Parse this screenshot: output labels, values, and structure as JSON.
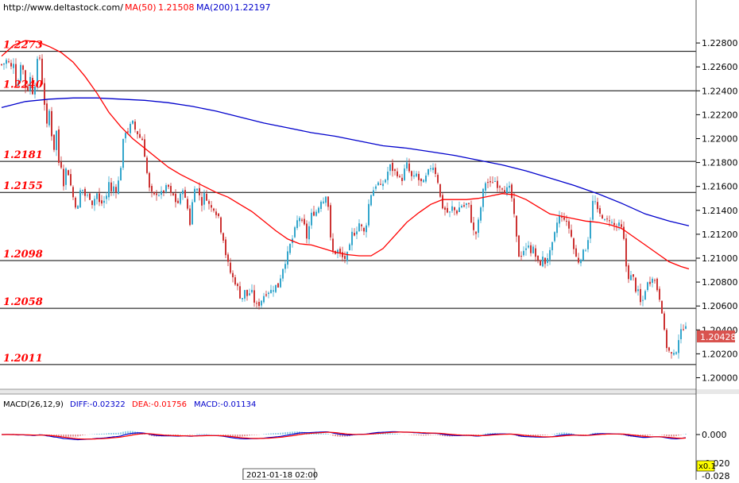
{
  "site_url": "http://www.deltastock.com/",
  "ma50": {
    "label": "MA(50)",
    "value": "1.21508",
    "color": "#ff0000"
  },
  "ma200": {
    "label": "MA(200)",
    "value": "1.22197",
    "color": "#0000cc"
  },
  "macd": {
    "label": "MACD(26,12,9)",
    "diff": "DIFF:-0.02322",
    "dea": "DEA:-0.01756",
    "macd_val": "MACD:-0.01134",
    "zero_label": "0.000",
    "low_label": "-0.020",
    "bottom_label": "-0.028",
    "factor_badge": "x0.1"
  },
  "current_price": "1.20428",
  "crosshair_date": "2021-01-18 02:00",
  "colors": {
    "up": "#33a6cc",
    "down": "#cc3333",
    "ma50": "#ff0000",
    "ma200": "#0000cc",
    "level": "#000000",
    "price_tag": "#d9534f"
  },
  "chart_data": {
    "type": "candlestick",
    "y_axis_ticks": [
      "1.22800",
      "1.22600",
      "1.22400",
      "1.22200",
      "1.22000",
      "1.21800",
      "1.21600",
      "1.21400",
      "1.21200",
      "1.21000",
      "1.20800",
      "1.20600",
      "1.20400",
      "1.20200",
      "1.20000"
    ],
    "ylim": [
      1.1993,
      1.23
    ],
    "levels": [
      {
        "value": 1.2273,
        "label": "1.2273"
      },
      {
        "value": 1.224,
        "label": "1.2240"
      },
      {
        "value": 1.2181,
        "label": "1.2181"
      },
      {
        "value": 1.2155,
        "label": "1.2155"
      },
      {
        "value": 1.2098,
        "label": "1.2098"
      },
      {
        "value": 1.2058,
        "label": "1.2058"
      },
      {
        "value": 1.2011,
        "label": "1.2011"
      }
    ],
    "close_path": [
      [
        0,
        1.2262
      ],
      [
        5,
        1.2264
      ],
      [
        8,
        1.2268
      ],
      [
        11,
        1.2254
      ],
      [
        14,
        1.227
      ],
      [
        16,
        1.2259
      ],
      [
        19,
        1.224
      ],
      [
        22,
        1.2251
      ],
      [
        25,
        1.227
      ],
      [
        28,
        1.2251
      ],
      [
        32,
        1.2236
      ],
      [
        35,
        1.2254
      ],
      [
        37,
        1.2248
      ],
      [
        40,
        1.2235
      ],
      [
        43,
        1.2252
      ],
      [
        45,
        1.2264
      ],
      [
        48,
        1.2268
      ],
      [
        50,
        1.2255
      ],
      [
        52,
        1.2239
      ],
      [
        55,
        1.2225
      ],
      [
        57,
        1.221
      ],
      [
        60,
        1.2223
      ],
      [
        62,
        1.2208
      ],
      [
        65,
        1.2195
      ],
      [
        67,
        1.2189
      ],
      [
        69,
        1.2206
      ],
      [
        72,
        1.218
      ],
      [
        75,
        1.2178
      ],
      [
        78,
        1.2163
      ],
      [
        80,
        1.2178
      ],
      [
        82,
        1.217
      ],
      [
        85,
        1.2172
      ],
      [
        88,
        1.2155
      ],
      [
        90,
        1.2151
      ],
      [
        93,
        1.2145
      ],
      [
        95,
        1.2138
      ],
      [
        98,
        1.215
      ],
      [
        100,
        1.2162
      ],
      [
        103,
        1.2155
      ],
      [
        106,
        1.2151
      ],
      [
        109,
        1.2152
      ],
      [
        112,
        1.2151
      ],
      [
        115,
        1.2144
      ],
      [
        117,
        1.215
      ],
      [
        120,
        1.2154
      ],
      [
        123,
        1.2146
      ],
      [
        126,
        1.2146
      ],
      [
        129,
        1.2148
      ],
      [
        132,
        1.2152
      ],
      [
        135,
        1.2164
      ],
      [
        138,
        1.2155
      ],
      [
        141,
        1.216
      ],
      [
        143,
        1.2156
      ],
      [
        146,
        1.2161
      ],
      [
        149,
        1.217
      ],
      [
        152,
        1.2192
      ],
      [
        155,
        1.2207
      ],
      [
        158,
        1.2206
      ],
      [
        161,
        1.2208
      ],
      [
        164,
        1.2215
      ],
      [
        167,
        1.2208
      ],
      [
        170,
        1.2207
      ],
      [
        173,
        1.22
      ],
      [
        176,
        1.2203
      ],
      [
        179,
        1.2192
      ],
      [
        182,
        1.2177
      ],
      [
        185,
        1.2159
      ],
      [
        188,
        1.2155
      ],
      [
        191,
        1.215
      ],
      [
        194,
        1.2155
      ],
      [
        197,
        1.2155
      ],
      [
        200,
        1.2152
      ],
      [
        203,
        1.2157
      ],
      [
        206,
        1.2156
      ],
      [
        209,
        1.2163
      ],
      [
        212,
        1.2152
      ],
      [
        215,
        1.2154
      ],
      [
        218,
        1.2148
      ],
      [
        221,
        1.2147
      ],
      [
        224,
        1.2145
      ],
      [
        227,
        1.2165
      ],
      [
        230,
        1.2148
      ],
      [
        233,
        1.215
      ],
      [
        236,
        1.2125
      ],
      [
        239,
        1.2138
      ],
      [
        242,
        1.2163
      ],
      [
        245,
        1.2157
      ],
      [
        248,
        1.2158
      ],
      [
        251,
        1.2143
      ],
      [
        254,
        1.2152
      ],
      [
        257,
        1.2153
      ],
      [
        260,
        1.2147
      ],
      [
        263,
        1.214
      ],
      [
        266,
        1.2145
      ],
      [
        269,
        1.2138
      ],
      [
        272,
        1.214
      ],
      [
        275,
        1.2125
      ],
      [
        278,
        1.2122
      ],
      [
        281,
        1.2107
      ],
      [
        284,
        1.2097
      ],
      [
        287,
        1.209
      ],
      [
        290,
        1.2084
      ],
      [
        293,
        1.2082
      ],
      [
        296,
        1.2077
      ],
      [
        299,
        1.2071
      ],
      [
        302,
        1.2064
      ],
      [
        305,
        1.2074
      ],
      [
        308,
        1.2068
      ],
      [
        311,
        1.207
      ],
      [
        314,
        1.2073
      ],
      [
        317,
        1.2066
      ],
      [
        320,
        1.206
      ],
      [
        323,
        1.2061
      ],
      [
        326,
        1.2064
      ],
      [
        329,
        1.2068
      ],
      [
        332,
        1.2071
      ],
      [
        335,
        1.2073
      ],
      [
        338,
        1.2072
      ],
      [
        341,
        1.2074
      ],
      [
        344,
        1.2078
      ],
      [
        347,
        1.2074
      ],
      [
        350,
        1.2082
      ],
      [
        353,
        1.209
      ],
      [
        356,
        1.2097
      ],
      [
        359,
        1.21
      ],
      [
        362,
        1.2109
      ],
      [
        365,
        1.2114
      ],
      [
        368,
        1.2121
      ],
      [
        371,
        1.2127
      ],
      [
        374,
        1.2138
      ],
      [
        377,
        1.2127
      ],
      [
        380,
        1.2132
      ],
      [
        383,
        1.2115
      ],
      [
        386,
        1.2122
      ],
      [
        389,
        1.2135
      ],
      [
        392,
        1.2138
      ],
      [
        395,
        1.2139
      ],
      [
        398,
        1.2139
      ],
      [
        401,
        1.2151
      ],
      [
        404,
        1.2146
      ],
      [
        407,
        1.2153
      ],
      [
        410,
        1.2156
      ],
      [
        413,
        1.212
      ],
      [
        416,
        1.2106
      ],
      [
        419,
        1.2104
      ],
      [
        422,
        1.2107
      ],
      [
        425,
        1.2104
      ],
      [
        428,
        1.2101
      ],
      [
        431,
        1.2099
      ],
      [
        434,
        1.2102
      ],
      [
        437,
        1.2103
      ],
      [
        440,
        1.212
      ],
      [
        443,
        1.2121
      ],
      [
        446,
        1.2122
      ],
      [
        449,
        1.213
      ],
      [
        452,
        1.2128
      ],
      [
        455,
        1.212
      ],
      [
        458,
        1.2124
      ],
      [
        461,
        1.2141
      ],
      [
        464,
        1.2153
      ],
      [
        467,
        1.2156
      ],
      [
        470,
        1.216
      ],
      [
        473,
        1.2165
      ],
      [
        476,
        1.2157
      ],
      [
        479,
        1.2162
      ],
      [
        482,
        1.2164
      ],
      [
        485,
        1.217
      ],
      [
        488,
        1.2177
      ],
      [
        491,
        1.2176
      ],
      [
        494,
        1.2171
      ],
      [
        497,
        1.2174
      ],
      [
        500,
        1.2166
      ],
      [
        503,
        1.2165
      ],
      [
        506,
        1.217
      ],
      [
        509,
        1.218
      ],
      [
        512,
        1.2174
      ],
      [
        515,
        1.2169
      ],
      [
        518,
        1.2164
      ],
      [
        521,
        1.2172
      ],
      [
        524,
        1.2166
      ],
      [
        527,
        1.2164
      ],
      [
        530,
        1.2161
      ],
      [
        533,
        1.2166
      ],
      [
        536,
        1.217
      ],
      [
        539,
        1.2175
      ],
      [
        542,
        1.2179
      ],
      [
        545,
        1.2173
      ],
      [
        548,
        1.217
      ],
      [
        551,
        1.2154
      ],
      [
        554,
        1.2144
      ],
      [
        557,
        1.2141
      ],
      [
        560,
        1.214
      ],
      [
        563,
        1.2135
      ],
      [
        566,
        1.2143
      ],
      [
        569,
        1.2141
      ],
      [
        572,
        1.2138
      ],
      [
        575,
        1.2141
      ],
      [
        578,
        1.2145
      ],
      [
        581,
        1.2143
      ],
      [
        584,
        1.2144
      ],
      [
        587,
        1.2147
      ],
      [
        590,
        1.2136
      ],
      [
        593,
        1.2124
      ],
      [
        596,
        1.2118
      ],
      [
        599,
        1.2126
      ],
      [
        602,
        1.2138
      ],
      [
        605,
        1.2152
      ],
      [
        608,
        1.2163
      ],
      [
        611,
        1.2165
      ],
      [
        614,
        1.216
      ],
      [
        617,
        1.2164
      ],
      [
        620,
        1.2166
      ],
      [
        623,
        1.2162
      ],
      [
        626,
        1.2161
      ],
      [
        629,
        1.2161
      ],
      [
        632,
        1.2158
      ],
      [
        635,
        1.2156
      ],
      [
        638,
        1.2159
      ],
      [
        641,
        1.2155
      ],
      [
        644,
        1.214
      ],
      [
        647,
        1.2122
      ],
      [
        650,
        1.2104
      ],
      [
        653,
        1.21
      ],
      [
        656,
        1.211
      ],
      [
        659,
        1.2101
      ],
      [
        662,
        1.2117
      ],
      [
        665,
        1.2105
      ],
      [
        668,
        1.2109
      ],
      [
        671,
        1.2104
      ],
      [
        674,
        1.2097
      ],
      [
        677,
        1.2093
      ],
      [
        680,
        1.2102
      ],
      [
        683,
        1.2094
      ],
      [
        686,
        1.2101
      ],
      [
        689,
        1.2102
      ],
      [
        692,
        1.2108
      ],
      [
        695,
        1.2116
      ],
      [
        698,
        1.2126
      ],
      [
        701,
        1.2137
      ],
      [
        704,
        1.2131
      ],
      [
        707,
        1.2137
      ],
      [
        710,
        1.2129
      ],
      [
        713,
        1.2127
      ],
      [
        716,
        1.2122
      ],
      [
        719,
        1.211
      ],
      [
        722,
        1.2103
      ],
      [
        725,
        1.2096
      ],
      [
        728,
        1.2101
      ],
      [
        731,
        1.2103
      ],
      [
        734,
        1.2107
      ],
      [
        737,
        1.2112
      ],
      [
        740,
        1.2127
      ],
      [
        743,
        1.2145
      ],
      [
        746,
        1.215
      ],
      [
        749,
        1.214
      ],
      [
        752,
        1.2135
      ],
      [
        755,
        1.2138
      ],
      [
        758,
        1.2131
      ],
      [
        761,
        1.2129
      ],
      [
        764,
        1.2135
      ],
      [
        767,
        1.213
      ],
      [
        770,
        1.2128
      ],
      [
        773,
        1.2126
      ],
      [
        776,
        1.2128
      ],
      [
        779,
        1.2125
      ],
      [
        782,
        1.2123
      ],
      [
        785,
        1.2097
      ],
      [
        788,
        1.2086
      ],
      [
        791,
        1.2083
      ],
      [
        794,
        1.2087
      ],
      [
        797,
        1.2074
      ],
      [
        800,
        1.2075
      ],
      [
        803,
        1.2063
      ],
      [
        806,
        1.2061
      ],
      [
        809,
        1.2072
      ],
      [
        812,
        1.2079
      ],
      [
        815,
        1.2078
      ],
      [
        818,
        1.2087
      ],
      [
        821,
        1.2083
      ],
      [
        824,
        1.2077
      ],
      [
        827,
        1.2069
      ],
      [
        830,
        1.2064
      ],
      [
        833,
        1.2042
      ],
      [
        836,
        1.2028
      ],
      [
        839,
        1.2023
      ],
      [
        842,
        1.202
      ],
      [
        845,
        1.2017
      ],
      [
        848,
        1.202
      ],
      [
        851,
        1.2032
      ],
      [
        854,
        1.2036
      ],
      [
        857,
        1.2041
      ],
      [
        860,
        1.2047
      ],
      [
        863,
        1.2043
      ]
    ],
    "ma50_path": [
      [
        0,
        1.2269
      ],
      [
        15,
        1.2278
      ],
      [
        30,
        1.2282
      ],
      [
        45,
        1.2281
      ],
      [
        60,
        1.2277
      ],
      [
        75,
        1.2272
      ],
      [
        90,
        1.2264
      ],
      [
        105,
        1.2252
      ],
      [
        120,
        1.2238
      ],
      [
        135,
        1.2222
      ],
      [
        150,
        1.221
      ],
      [
        165,
        1.22
      ],
      [
        180,
        1.2192
      ],
      [
        195,
        1.2184
      ],
      [
        210,
        1.2176
      ],
      [
        225,
        1.217
      ],
      [
        240,
        1.2165
      ],
      [
        255,
        1.216
      ],
      [
        270,
        1.2155
      ],
      [
        285,
        1.2151
      ],
      [
        300,
        1.2145
      ],
      [
        315,
        1.2139
      ],
      [
        330,
        1.2131
      ],
      [
        345,
        1.2123
      ],
      [
        360,
        1.2116
      ],
      [
        375,
        1.2112
      ],
      [
        390,
        1.2111
      ],
      [
        405,
        1.2108
      ],
      [
        420,
        1.2105
      ],
      [
        435,
        1.2103
      ],
      [
        450,
        1.2102
      ],
      [
        465,
        1.2102
      ],
      [
        480,
        1.2108
      ],
      [
        495,
        1.2119
      ],
      [
        510,
        1.213
      ],
      [
        525,
        1.2138
      ],
      [
        540,
        1.2145
      ],
      [
        555,
        1.2149
      ],
      [
        570,
        1.2149
      ],
      [
        585,
        1.2149
      ],
      [
        600,
        1.215
      ],
      [
        615,
        1.2152
      ],
      [
        630,
        1.2154
      ],
      [
        645,
        1.2153
      ],
      [
        660,
        1.2149
      ],
      [
        675,
        1.2143
      ],
      [
        690,
        1.2137
      ],
      [
        705,
        1.2135
      ],
      [
        720,
        1.2133
      ],
      [
        735,
        1.2131
      ],
      [
        750,
        1.213
      ],
      [
        765,
        1.2128
      ],
      [
        780,
        1.2125
      ],
      [
        795,
        1.2118
      ],
      [
        810,
        1.2111
      ],
      [
        825,
        1.2104
      ],
      [
        840,
        1.2097
      ],
      [
        855,
        1.2093
      ],
      [
        865,
        1.2091
      ]
    ],
    "ma200_path": [
      [
        0,
        1.2226
      ],
      [
        30,
        1.2231
      ],
      [
        60,
        1.2233
      ],
      [
        90,
        1.2234
      ],
      [
        120,
        1.2234
      ],
      [
        150,
        1.2233
      ],
      [
        180,
        1.2232
      ],
      [
        210,
        1.223
      ],
      [
        240,
        1.2227
      ],
      [
        270,
        1.2223
      ],
      [
        300,
        1.2218
      ],
      [
        330,
        1.2213
      ],
      [
        360,
        1.2209
      ],
      [
        390,
        1.2205
      ],
      [
        420,
        1.2202
      ],
      [
        450,
        1.2198
      ],
      [
        480,
        1.2194
      ],
      [
        510,
        1.2192
      ],
      [
        540,
        1.2189
      ],
      [
        570,
        1.2186
      ],
      [
        600,
        1.2182
      ],
      [
        630,
        1.2178
      ],
      [
        660,
        1.2173
      ],
      [
        690,
        1.2167
      ],
      [
        720,
        1.2161
      ],
      [
        750,
        1.2154
      ],
      [
        780,
        1.2146
      ],
      [
        810,
        1.2137
      ],
      [
        840,
        1.2131
      ],
      [
        865,
        1.2127
      ]
    ]
  }
}
